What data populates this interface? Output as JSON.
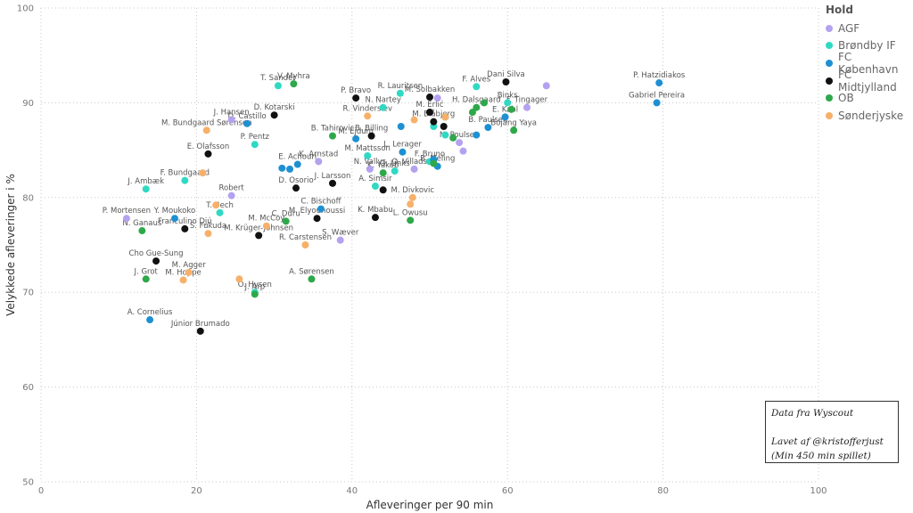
{
  "chart_data": {
    "type": "scatter",
    "xlabel": "Afleveringer per 90 min",
    "ylabel": "Velykkede afleveringer i %",
    "xlim": [
      0,
      100
    ],
    "ylim": [
      50,
      100
    ],
    "xticks": [
      "0",
      "20",
      "40",
      "60",
      "80",
      "100"
    ],
    "yticks": [
      "50",
      "60",
      "70",
      "80",
      "90",
      "100"
    ],
    "grid": true,
    "legend_position": "top-right",
    "legend_title": "Hold",
    "series": [
      {
        "name": "AGF",
        "color": "#b4a1f0",
        "points": [
          {
            "label": "",
            "x": 65.0,
            "y": 91.8
          },
          {
            "label": "F. Tingager",
            "x": 62.5,
            "y": 89.5
          },
          {
            "label": "J. Hansen",
            "x": 24.5,
            "y": 88.2
          },
          {
            "label": "N. Poulsen",
            "x": 53.8,
            "y": 85.8
          },
          {
            "label": "",
            "x": 54.3,
            "y": 84.9
          },
          {
            "label": "K. Arnstad",
            "x": 35.7,
            "y": 83.8
          },
          {
            "label": "N. Vallys",
            "x": 42.3,
            "y": 83.0
          },
          {
            "label": "O. Villadsen",
            "x": 48.0,
            "y": 83.0
          },
          {
            "label": "Robert",
            "x": 24.5,
            "y": 80.2
          },
          {
            "label": "P. Mortensen",
            "x": 11.0,
            "y": 77.8
          },
          {
            "label": "S. Wæver",
            "x": 38.5,
            "y": 75.5
          },
          {
            "label": "",
            "x": 51.0,
            "y": 90.5
          }
        ]
      },
      {
        "name": "Brøndby IF",
        "color": "#2fd9c3",
        "points": [
          {
            "label": "T. Sander",
            "x": 30.5,
            "y": 91.8
          },
          {
            "label": "R. Lauritsen",
            "x": 46.2,
            "y": 91.0
          },
          {
            "label": "F. Alves",
            "x": 56.0,
            "y": 91.7
          },
          {
            "label": "Binks",
            "x": 60.0,
            "y": 90.0
          },
          {
            "label": "N. Nartey",
            "x": 44.0,
            "y": 89.5
          },
          {
            "label": "",
            "x": 50.5,
            "y": 87.5
          },
          {
            "label": "",
            "x": 52.0,
            "y": 86.6
          },
          {
            "label": "P. Pentz",
            "x": 27.5,
            "y": 85.6
          },
          {
            "label": "M. Mattsson",
            "x": 42.0,
            "y": 84.4
          },
          {
            "label": "F. Bruno",
            "x": 50.0,
            "y": 83.8
          },
          {
            "label": "J. Ambæk",
            "x": 13.5,
            "y": 80.9
          },
          {
            "label": "F. Bundgaard",
            "x": 18.5,
            "y": 81.8
          },
          {
            "label": "G. Links",
            "x": 45.5,
            "y": 82.8
          },
          {
            "label": "A. Simsir",
            "x": 43.0,
            "y": 81.2
          },
          {
            "label": "T. Bech",
            "x": 23.0,
            "y": 78.4
          },
          {
            "label": "O. Hysen",
            "x": 27.5,
            "y": 70.0
          }
        ]
      },
      {
        "name": "FC København",
        "color": "#1e90d2",
        "points": [
          {
            "label": "P. Hatzidiakos",
            "x": 79.5,
            "y": 92.1
          },
          {
            "label": "Gabriel Pereira",
            "x": 79.2,
            "y": 90.0
          },
          {
            "label": "E. Kahl",
            "x": 59.7,
            "y": 88.5
          },
          {
            "label": "D. Castillo",
            "x": 26.5,
            "y": 87.8
          },
          {
            "label": "B. Paulsen",
            "x": 57.5,
            "y": 87.4
          },
          {
            "label": "",
            "x": 46.3,
            "y": 87.5
          },
          {
            "label": "M. Ejdum",
            "x": 40.5,
            "y": 86.2
          },
          {
            "label": "",
            "x": 56.0,
            "y": 86.6
          },
          {
            "label": "E. Achouri",
            "x": 33.0,
            "y": 83.5
          },
          {
            "label": "L. Lerager",
            "x": 46.5,
            "y": 84.8
          },
          {
            "label": "",
            "x": 31.0,
            "y": 83.1
          },
          {
            "label": "",
            "x": 32.0,
            "y": 83.0
          },
          {
            "label": "B. Meling",
            "x": 51.0,
            "y": 83.3
          },
          {
            "label": "",
            "x": 50.5,
            "y": 84.0
          },
          {
            "label": "Y. Moukoko",
            "x": 17.2,
            "y": 77.8
          },
          {
            "label": "C. Bischoff",
            "x": 36.0,
            "y": 78.8
          },
          {
            "label": "A. Cornelius",
            "x": 14.0,
            "y": 67.1
          }
        ]
      },
      {
        "name": "FC Midtjylland",
        "color": "#111111",
        "points": [
          {
            "label": "Dani Silva",
            "x": 59.8,
            "y": 92.2
          },
          {
            "label": "M. Solbakken",
            "x": 50.0,
            "y": 90.6
          },
          {
            "label": "P. Bravo",
            "x": 40.5,
            "y": 90.5
          },
          {
            "label": "D. Kotarski",
            "x": 30.0,
            "y": 88.7
          },
          {
            "label": "M. Erlić",
            "x": 50.0,
            "y": 89.0
          },
          {
            "label": "M. Blåbjerg",
            "x": 50.5,
            "y": 88.0
          },
          {
            "label": "",
            "x": 51.8,
            "y": 87.5
          },
          {
            "label": "B. Billing",
            "x": 42.5,
            "y": 86.5
          },
          {
            "label": "E. Olafsson",
            "x": 21.5,
            "y": 84.6
          },
          {
            "label": "J. Larsson",
            "x": 37.5,
            "y": 81.5
          },
          {
            "label": "D. Osorio",
            "x": 32.8,
            "y": 81.0
          },
          {
            "label": "",
            "x": 44.0,
            "y": 80.8
          },
          {
            "label": "M. Elyounoussi",
            "x": 35.5,
            "y": 77.8
          },
          {
            "label": "K. Mbabu",
            "x": 43.0,
            "y": 77.9
          },
          {
            "label": "Franculino Djú",
            "x": 18.5,
            "y": 76.7
          },
          {
            "label": "M. Krüger-Johnsen",
            "x": 28.0,
            "y": 76.0
          },
          {
            "label": "Cho Gue-Sung",
            "x": 14.8,
            "y": 73.3
          },
          {
            "label": "Júnior Brumado",
            "x": 20.5,
            "y": 65.9
          }
        ]
      },
      {
        "name": "OB",
        "color": "#2ea84a",
        "points": [
          {
            "label": "V. Myhra",
            "x": 32.5,
            "y": 92.0
          },
          {
            "label": "",
            "x": 57.0,
            "y": 90.0
          },
          {
            "label": "H. Dalsgaard",
            "x": 56.0,
            "y": 89.5
          },
          {
            "label": "",
            "x": 55.5,
            "y": 89.0
          },
          {
            "label": "",
            "x": 60.5,
            "y": 89.3
          },
          {
            "label": "",
            "x": 52.0,
            "y": 88.5
          },
          {
            "label": "Bojang Yaya",
            "x": 60.8,
            "y": 87.1
          },
          {
            "label": "B. Tahirovic",
            "x": 37.5,
            "y": 86.5
          },
          {
            "label": "",
            "x": 53.0,
            "y": 86.3
          },
          {
            "label": "K. Yakob",
            "x": 44.0,
            "y": 82.6
          },
          {
            "label": "",
            "x": 50.5,
            "y": 83.6
          },
          {
            "label": "C. Duru",
            "x": 31.5,
            "y": 77.5
          },
          {
            "label": "L. Owusu",
            "x": 47.5,
            "y": 77.6
          },
          {
            "label": "N. Ganaus",
            "x": 13.0,
            "y": 76.5
          },
          {
            "label": "J. Grot",
            "x": 13.5,
            "y": 71.4
          },
          {
            "label": "A. Sørensen",
            "x": 34.8,
            "y": 71.4
          },
          {
            "label": "J. Arp",
            "x": 27.5,
            "y": 69.8
          }
        ]
      },
      {
        "name": "Sønderjyske",
        "color": "#f7b06a",
        "points": [
          {
            "label": "M. Bundgaard Sørensen",
            "x": 21.3,
            "y": 87.1
          },
          {
            "label": "R. Vinderslev",
            "x": 42.0,
            "y": 88.6
          },
          {
            "label": "",
            "x": 48.0,
            "y": 88.2
          },
          {
            "label": "",
            "x": 52.0,
            "y": 88.5
          },
          {
            "label": "",
            "x": 20.8,
            "y": 82.6
          },
          {
            "label": "M. Divkovic",
            "x": 47.8,
            "y": 80.0
          },
          {
            "label": "",
            "x": 47.5,
            "y": 79.3
          },
          {
            "label": "",
            "x": 22.5,
            "y": 79.2
          },
          {
            "label": "S. Fukuda",
            "x": 21.5,
            "y": 76.2
          },
          {
            "label": "M. McCoy",
            "x": 29.0,
            "y": 77.0
          },
          {
            "label": "R. Carstensen",
            "x": 34.0,
            "y": 75.0
          },
          {
            "label": "M. Agger",
            "x": 19.0,
            "y": 72.1
          },
          {
            "label": "M. Hoppe",
            "x": 18.3,
            "y": 71.3
          },
          {
            "label": "",
            "x": 25.5,
            "y": 71.4
          }
        ]
      }
    ]
  },
  "annotation": {
    "line1": "Data fra Wyscout",
    "line2": "Lavet af @kristofferjust",
    "line3": "(Min 450 min spillet)"
  }
}
